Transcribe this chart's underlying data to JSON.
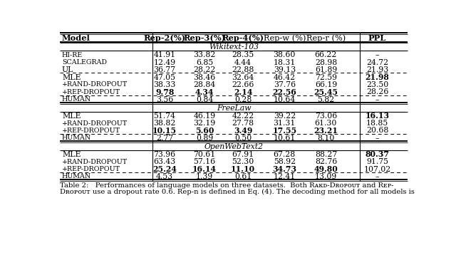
{
  "col_headers": [
    "Model",
    "Rep-2(%)",
    "Rep-3(%)",
    "Rep-4(%)",
    "Rep-w (%)",
    "Rep-r (%)",
    "PPL"
  ],
  "col_header_bold": [
    true,
    true,
    true,
    true,
    false,
    false,
    true
  ],
  "sections": [
    {
      "name": "Wikitext-103",
      "rows": [
        {
          "model": "Hi-Re",
          "sc": true,
          "vals": [
            "41.91",
            "33.82",
            "28.35",
            "38.60",
            "66.22",
            "–"
          ],
          "bold_vals": []
        },
        {
          "model": "ScaleGrad",
          "sc": true,
          "vals": [
            "12.49",
            "6.85",
            "4.44",
            "18.31",
            "28.98",
            "24.72"
          ],
          "bold_vals": []
        },
        {
          "model": "UL",
          "sc": false,
          "vals": [
            "36.77",
            "28.22",
            "22.88",
            "39.13",
            "61.89",
            "21.93"
          ],
          "bold_vals": []
        },
        {
          "model": "MLE",
          "sc": false,
          "vals": [
            "47.05",
            "38.46",
            "32.64",
            "46.42",
            "72.59",
            "21.98"
          ],
          "bold_vals": [
            5
          ],
          "dash_above": true
        },
        {
          "model": "+Rand-Dropout",
          "sc": true,
          "vals": [
            "38.33",
            "28.84",
            "22.66",
            "37.76",
            "66.19",
            "23.50"
          ],
          "bold_vals": []
        },
        {
          "model": "+Rep-Dropout",
          "sc": true,
          "vals": [
            "9.78",
            "4.34",
            "2.14",
            "22.56",
            "25.45",
            "28.26"
          ],
          "bold_vals": [
            0,
            1,
            2,
            3,
            4
          ]
        },
        {
          "model": "Human",
          "sc": true,
          "vals": [
            "3.56",
            "0.84",
            "0.28",
            "10.64",
            "5.82",
            "–"
          ],
          "bold_vals": [],
          "dash_above": true
        }
      ]
    },
    {
      "name": "FreeLaw",
      "rows": [
        {
          "model": "MLE",
          "sc": false,
          "vals": [
            "51.74",
            "46.19",
            "42.22",
            "39.22",
            "73.06",
            "16.13"
          ],
          "bold_vals": [
            5
          ]
        },
        {
          "model": "+Rand-Dropout",
          "sc": true,
          "vals": [
            "38.82",
            "32.19",
            "27.78",
            "31.31",
            "61.30",
            "18.85"
          ],
          "bold_vals": []
        },
        {
          "model": "+Rep-Dropout",
          "sc": true,
          "vals": [
            "10.15",
            "5.60",
            "3.49",
            "17.55",
            "23.21",
            "20.68"
          ],
          "bold_vals": [
            0,
            1,
            2,
            3,
            4
          ]
        },
        {
          "model": "Human",
          "sc": true,
          "vals": [
            "2.77",
            "0.89",
            "0.50",
            "10.61",
            "8.10",
            "–"
          ],
          "bold_vals": [],
          "dash_above": true
        }
      ]
    },
    {
      "name": "OpenWebText2",
      "rows": [
        {
          "model": "MLE",
          "sc": false,
          "vals": [
            "73.96",
            "70.61",
            "67.91",
            "67.28",
            "88.27",
            "80.37"
          ],
          "bold_vals": [
            5
          ]
        },
        {
          "model": "+Rand-Dropout",
          "sc": true,
          "vals": [
            "63.43",
            "57.16",
            "52.30",
            "58.92",
            "82.76",
            "91.75"
          ],
          "bold_vals": []
        },
        {
          "model": "+Rep-Dropout",
          "sc": true,
          "vals": [
            "25.24",
            "16.14",
            "11.10",
            "34.73",
            "49.80",
            "107.02"
          ],
          "bold_vals": [
            0,
            1,
            2,
            3,
            4
          ]
        },
        {
          "model": "Human",
          "sc": true,
          "vals": [
            "4.53",
            "1.39",
            "0.61",
            "12.41",
            "13.09",
            "–"
          ],
          "bold_vals": [],
          "dash_above": true
        }
      ]
    }
  ],
  "caption1": "Table 2:   Performances of language models on three datasets.  Both Rand-Dropout and Rep-",
  "caption2": "Dropout use a dropout rate 0.6. Rep-n is defined in Eq. (4). The decoding method for all models is"
}
